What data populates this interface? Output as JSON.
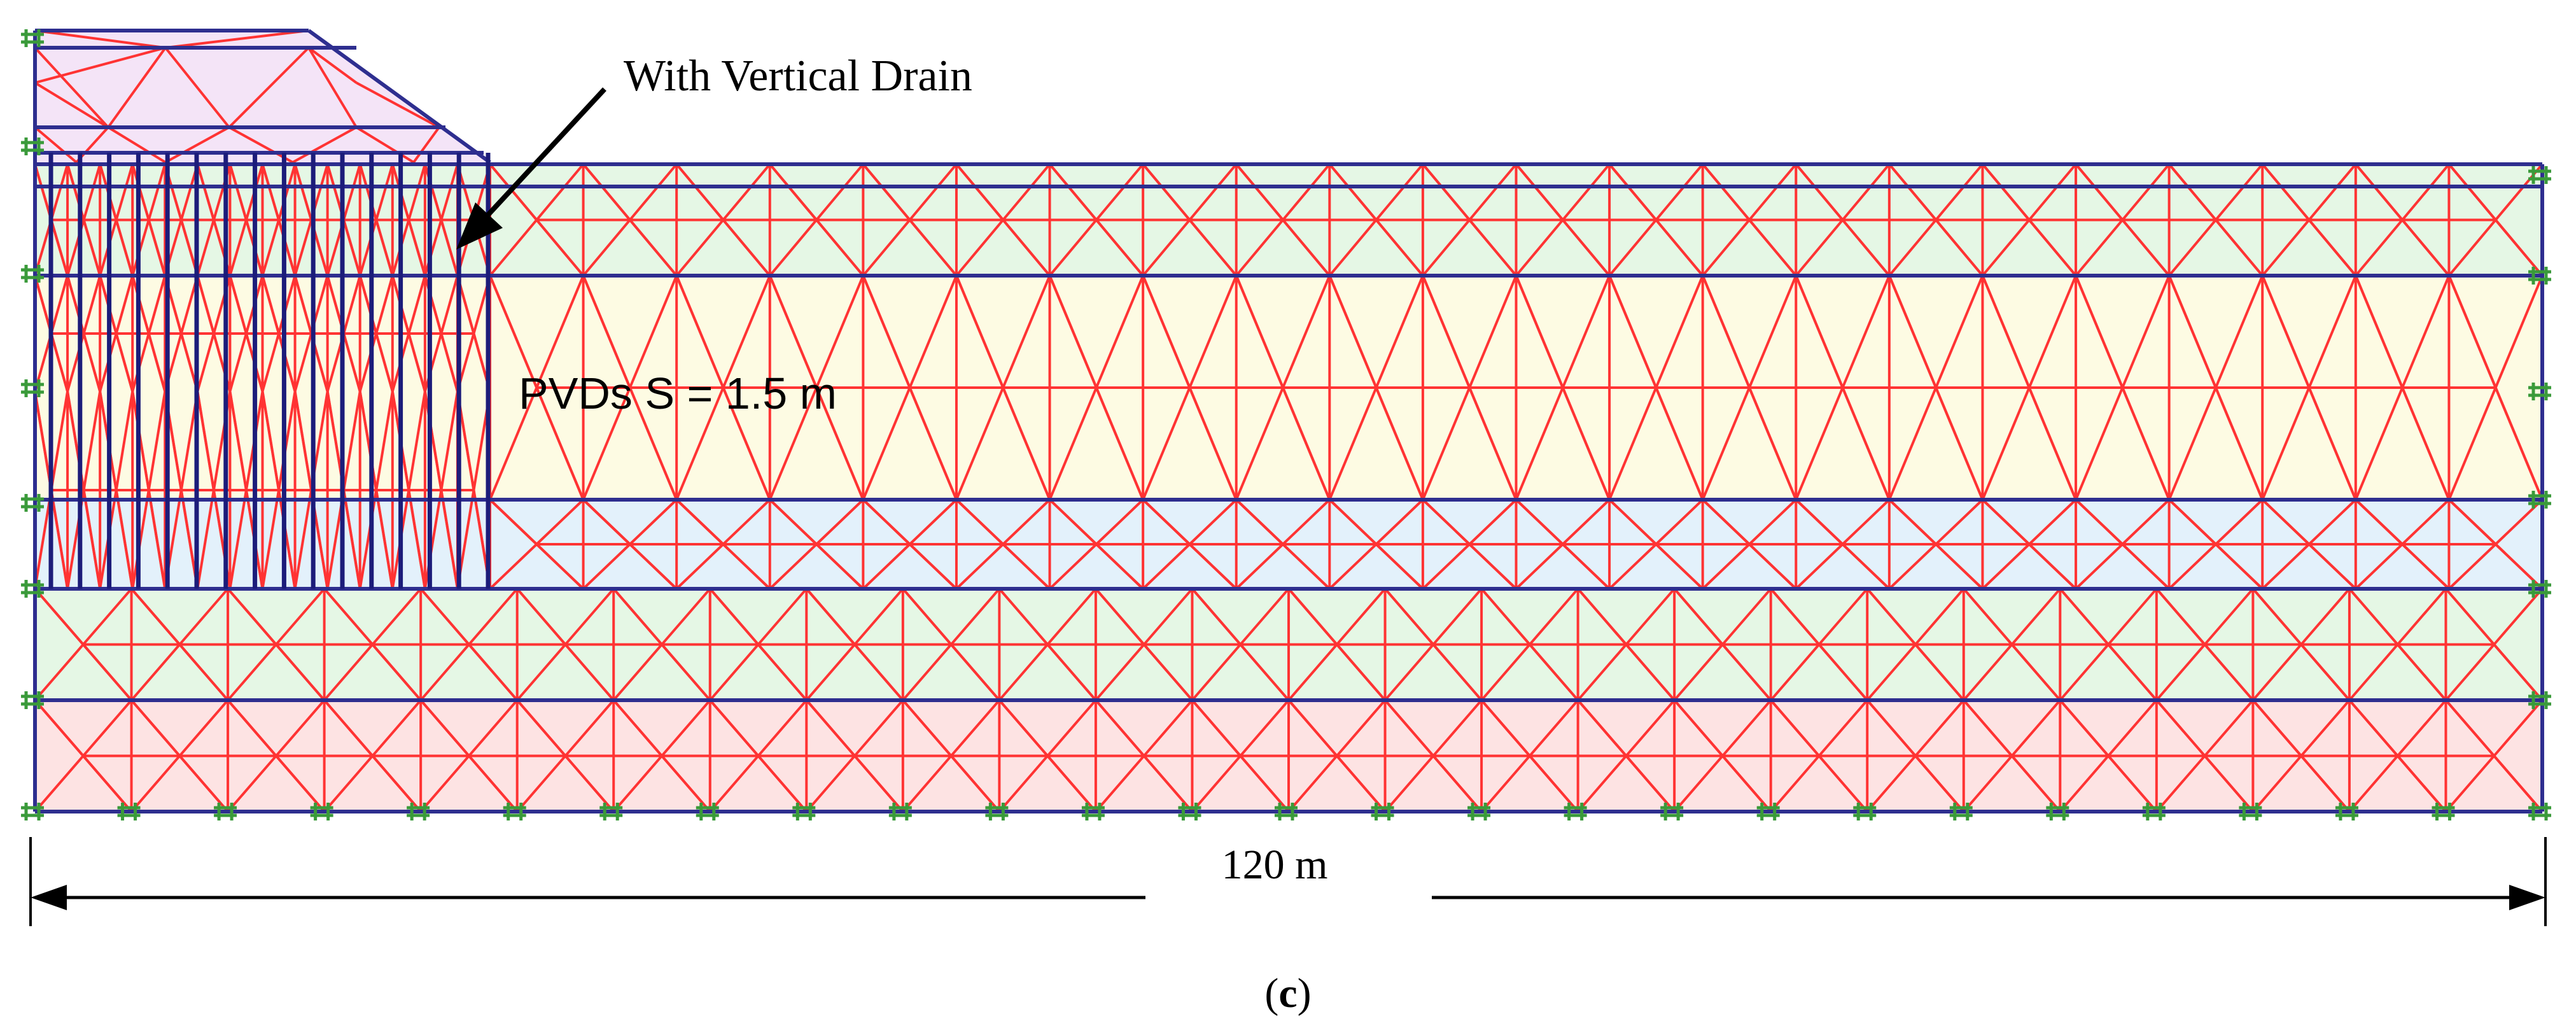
{
  "annotations": {
    "drain_callout": "With Vertical Drain",
    "pvd_spacing": "PVDs S = 1.5 m",
    "width_dimension": "120 m",
    "panel_label_open": "(",
    "panel_label_letter": "c",
    "panel_label_close": ")"
  },
  "colors": {
    "mesh_line": "#ff3333",
    "boundary_line": "#2e2e8f",
    "drain_line": "#1c1c7a",
    "fixity_marker": "#3a9a3a",
    "embankment_fill": "#f4e4f7",
    "layer1_fill": "#e5f7e5",
    "layer2_fill": "#fdfbe3",
    "layer3_fill": "#e3f1fb",
    "layer4_fill": "#e5f7e5",
    "layer5_fill": "#fde3e3"
  },
  "icons": {
    "callout_arrow": "arrow-down-left",
    "dimension_arrows": "double-headed-arrow",
    "boundary_marker": "hash-fixity-symbol"
  }
}
